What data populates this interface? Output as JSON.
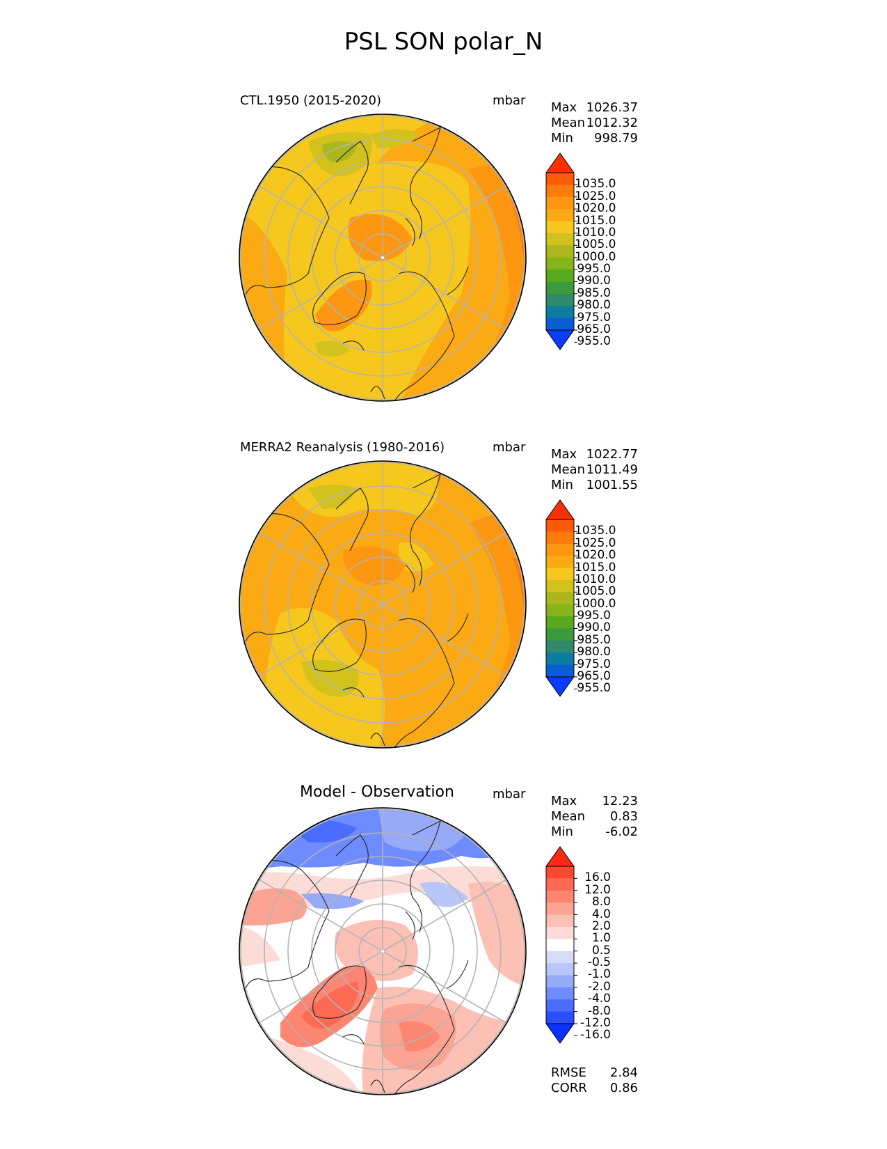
{
  "figure": {
    "title": "PSL SON polar_N",
    "units": "mbar"
  },
  "panels": [
    {
      "title": "CTL.1950 (2015-2020)",
      "units": "mbar",
      "stats": [
        {
          "label": "Max",
          "value": "1026.37"
        },
        {
          "label": "Mean",
          "value": "1012.32"
        },
        {
          "label": "Min",
          "value": "998.79"
        }
      ],
      "colorbar": {
        "colors": [
          "#0a3cff",
          "#0a5ed2",
          "#0e7ca0",
          "#2e8a6a",
          "#3a9a3c",
          "#5aa81e",
          "#86b41a",
          "#aab81e",
          "#d2c21e",
          "#f6c81e",
          "#fbaa14",
          "#fd9610",
          "#fd7a0c",
          "#fc5a08",
          "#fb3004"
        ],
        "labels": [
          "1035.0",
          "1025.0",
          "1020.0",
          "1015.0",
          "1010.0",
          "1005.0",
          "1000.0",
          "995.0",
          "990.0",
          "985.0",
          "980.0",
          "975.0",
          "965.0",
          "955.0"
        ]
      }
    },
    {
      "title": "MERRA2 Reanalysis (1980-2016)",
      "units": "mbar",
      "stats": [
        {
          "label": "Max",
          "value": "1022.77"
        },
        {
          "label": "Mean",
          "value": "1011.49"
        },
        {
          "label": "Min",
          "value": "1001.55"
        }
      ],
      "colorbar": {
        "colors": [
          "#0a3cff",
          "#0a5ed2",
          "#0e7ca0",
          "#2e8a6a",
          "#3a9a3c",
          "#5aa81e",
          "#86b41a",
          "#aab81e",
          "#d2c21e",
          "#f6c81e",
          "#fbaa14",
          "#fd9610",
          "#fd7a0c",
          "#fc5a08",
          "#fb3004"
        ],
        "labels": [
          "1035.0",
          "1025.0",
          "1020.0",
          "1015.0",
          "1010.0",
          "1005.0",
          "1000.0",
          "995.0",
          "990.0",
          "985.0",
          "980.0",
          "975.0",
          "965.0",
          "955.0"
        ]
      }
    },
    {
      "title": "Model - Observation",
      "units": "mbar",
      "stats": [
        {
          "label": "Max",
          "value": "12.23"
        },
        {
          "label": "Mean",
          "value": "0.83"
        },
        {
          "label": "Min",
          "value": "-6.02"
        }
      ],
      "extra_stats": [
        {
          "label": "RMSE",
          "value": "2.84"
        },
        {
          "label": "CORR",
          "value": "0.86"
        }
      ],
      "colorbar": {
        "colors": [
          "#0a32ff",
          "#2850ff",
          "#4a6cff",
          "#6e8cff",
          "#96aaf8",
          "#b8c6f8",
          "#d6dcf8",
          "#ffffff",
          "#fcdcd6",
          "#fcc0b4",
          "#fca494",
          "#fc8672",
          "#fc6a54",
          "#fc4a32",
          "#fc2a10"
        ],
        "labels": [
          "16.0",
          "12.0",
          "8.0",
          "4.0",
          "2.0",
          "1.0",
          "0.5",
          "-0.5",
          "-1.0",
          "-2.0",
          "-4.0",
          "-8.0",
          "-12.0",
          "-16.0"
        ]
      }
    }
  ],
  "chart_data": [
    {
      "type": "heatmap",
      "projection": "north polar stereographic",
      "title": "CTL.1950 (2015-2020)",
      "variable": "PSL",
      "season": "SON",
      "units": "mbar",
      "stats": {
        "max": 1026.37,
        "mean": 1012.32,
        "min": 998.79
      },
      "levels": [
        955,
        965,
        975,
        980,
        985,
        990,
        995,
        1000,
        1005,
        1010,
        1015,
        1020,
        1025,
        1035
      ]
    },
    {
      "type": "heatmap",
      "projection": "north polar stereographic",
      "title": "MERRA2 Reanalysis (1980-2016)",
      "variable": "PSL",
      "season": "SON",
      "units": "mbar",
      "stats": {
        "max": 1022.77,
        "mean": 1011.49,
        "min": 1001.55
      },
      "levels": [
        955,
        965,
        975,
        980,
        985,
        990,
        995,
        1000,
        1005,
        1010,
        1015,
        1020,
        1025,
        1035
      ]
    },
    {
      "type": "heatmap",
      "projection": "north polar stereographic",
      "title": "Model - Observation",
      "variable": "PSL difference",
      "units": "mbar",
      "stats": {
        "max": 12.23,
        "mean": 0.83,
        "min": -6.02,
        "rmse": 2.84,
        "corr": 0.86
      },
      "levels": [
        -16,
        -12,
        -8,
        -4,
        -2,
        -1,
        -0.5,
        0.5,
        1,
        2,
        4,
        8,
        12,
        16
      ]
    }
  ]
}
